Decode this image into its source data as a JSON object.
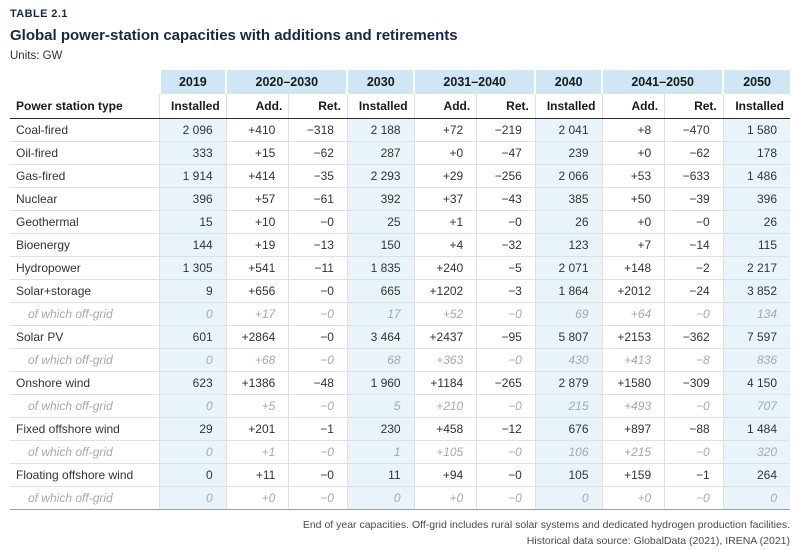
{
  "page": {
    "table_label": "TABLE 2.1",
    "title": "Global power-station capacities with additions and retirements",
    "units": "Units: GW",
    "footnote_line1": "End of year capacities. Off-grid includes rural solar systems and dedicated hydrogen production facilities.",
    "footnote_line2": "Historical data source: GlobalData (2021), IRENA (2021)"
  },
  "colors": {
    "title_navy": "#13294b",
    "header_band_blue": "#cfe7f4",
    "installed_column_blue": "#e9f4fa",
    "offgrid_gray": "#a8a8a8"
  },
  "table": {
    "periods": [
      "2019",
      "2020–2030",
      "2030",
      "2031–2040",
      "2040",
      "2041–2050",
      "2050"
    ],
    "column_headers": [
      "Power station type",
      "Installed",
      "Add.",
      "Ret.",
      "Installed",
      "Add.",
      "Ret.",
      "Installed",
      "Add.",
      "Ret.",
      "Installed"
    ],
    "rows": [
      {
        "type": "Coal-fired",
        "offgrid": false,
        "values": [
          "2 096",
          "+410",
          "−318",
          "2 188",
          "+72",
          "−219",
          "2 041",
          "+8",
          "−470",
          "1 580"
        ]
      },
      {
        "type": "Oil-fired",
        "offgrid": false,
        "values": [
          "333",
          "+15",
          "−62",
          "287",
          "+0",
          "−47",
          "239",
          "+0",
          "−62",
          "178"
        ]
      },
      {
        "type": "Gas-fired",
        "offgrid": false,
        "values": [
          "1 914",
          "+414",
          "−35",
          "2 293",
          "+29",
          "−256",
          "2 066",
          "+53",
          "−633",
          "1 486"
        ]
      },
      {
        "type": "Nuclear",
        "offgrid": false,
        "values": [
          "396",
          "+57",
          "−61",
          "392",
          "+37",
          "−43",
          "385",
          "+50",
          "−39",
          "396"
        ]
      },
      {
        "type": "Geothermal",
        "offgrid": false,
        "values": [
          "15",
          "+10",
          "−0",
          "25",
          "+1",
          "−0",
          "26",
          "+0",
          "−0",
          "26"
        ]
      },
      {
        "type": "Bioenergy",
        "offgrid": false,
        "values": [
          "144",
          "+19",
          "−13",
          "150",
          "+4",
          "−32",
          "123",
          "+7",
          "−14",
          "115"
        ]
      },
      {
        "type": "Hydropower",
        "offgrid": false,
        "values": [
          "1 305",
          "+541",
          "−11",
          "1 835",
          "+240",
          "−5",
          "2 071",
          "+148",
          "−2",
          "2 217"
        ]
      },
      {
        "type": "Solar+storage",
        "offgrid": false,
        "values": [
          "9",
          "+656",
          "−0",
          "665",
          "+1202",
          "−3",
          "1 864",
          "+2012",
          "−24",
          "3 852"
        ]
      },
      {
        "type": "of which off-grid",
        "offgrid": true,
        "values": [
          "0",
          "+17",
          "−0",
          "17",
          "+52",
          "−0",
          "69",
          "+64",
          "−0",
          "134"
        ]
      },
      {
        "type": "Solar PV",
        "offgrid": false,
        "values": [
          "601",
          "+2864",
          "−0",
          "3 464",
          "+2437",
          "−95",
          "5 807",
          "+2153",
          "−362",
          "7 597"
        ]
      },
      {
        "type": "of which off-grid",
        "offgrid": true,
        "values": [
          "0",
          "+68",
          "−0",
          "68",
          "+363",
          "−0",
          "430",
          "+413",
          "−8",
          "836"
        ]
      },
      {
        "type": "Onshore wind",
        "offgrid": false,
        "values": [
          "623",
          "+1386",
          "−48",
          "1 960",
          "+1184",
          "−265",
          "2 879",
          "+1580",
          "−309",
          "4 150"
        ]
      },
      {
        "type": "of which off-grid",
        "offgrid": true,
        "values": [
          "0",
          "+5",
          "−0",
          "5",
          "+210",
          "−0",
          "215",
          "+493",
          "−0",
          "707"
        ]
      },
      {
        "type": "Fixed offshore wind",
        "offgrid": false,
        "values": [
          "29",
          "+201",
          "−1",
          "230",
          "+458",
          "−12",
          "676",
          "+897",
          "−88",
          "1 484"
        ]
      },
      {
        "type": "of which off-grid",
        "offgrid": true,
        "values": [
          "0",
          "+1",
          "−0",
          "1",
          "+105",
          "−0",
          "106",
          "+215",
          "−0",
          "320"
        ]
      },
      {
        "type": "Floating offshore wind",
        "offgrid": false,
        "values": [
          "0",
          "+11",
          "−0",
          "11",
          "+94",
          "−0",
          "105",
          "+159",
          "−1",
          "264"
        ]
      },
      {
        "type": "of which off-grid",
        "offgrid": true,
        "values": [
          "0",
          "+0",
          "−0",
          "0",
          "+0",
          "−0",
          "0",
          "+0",
          "−0",
          "0"
        ]
      }
    ],
    "installed_value_indexes": [
      0,
      3,
      6,
      9
    ]
  }
}
